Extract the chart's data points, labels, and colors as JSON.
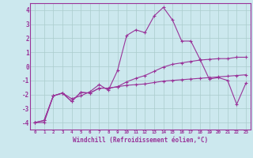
{
  "background_color": "#cce8ee",
  "grid_color": "#aacccc",
  "line_color": "#993399",
  "xlim": [
    -0.5,
    23.5
  ],
  "ylim": [
    -4.5,
    4.5
  ],
  "xtick_labels": [
    "0",
    "1",
    "2",
    "3",
    "4",
    "5",
    "6",
    "7",
    "8",
    "9",
    "10",
    "11",
    "12",
    "13",
    "14",
    "15",
    "16",
    "17",
    "18",
    "19",
    "20",
    "21",
    "22",
    "23"
  ],
  "ytick_labels": [
    "-4",
    "-3",
    "-2",
    "-1",
    "0",
    "1",
    "2",
    "3",
    "4"
  ],
  "ytick_values": [
    -4,
    -3,
    -2,
    -1,
    0,
    1,
    2,
    3,
    4
  ],
  "xlabel": "Windchill (Refroidissement éolien,°C)",
  "series1_x": [
    0,
    1,
    2,
    3,
    4,
    5,
    6,
    7,
    8,
    9,
    10,
    11,
    12,
    13,
    14,
    15,
    16,
    17,
    18,
    19,
    20,
    21,
    22,
    23
  ],
  "series1_y": [
    -4.0,
    -4.0,
    -2.1,
    -1.9,
    -2.3,
    -2.1,
    -1.8,
    -1.3,
    -1.7,
    -0.3,
    2.2,
    2.6,
    2.4,
    3.6,
    4.2,
    3.3,
    1.8,
    1.8,
    0.5,
    -0.9,
    -0.8,
    -1.0,
    -2.7,
    -1.2
  ],
  "series2_x": [
    0,
    1,
    2,
    3,
    4,
    5,
    6,
    7,
    8,
    9,
    10,
    11,
    12,
    13,
    14,
    15,
    16,
    17,
    18,
    19,
    20,
    21,
    22,
    23
  ],
  "series2_y": [
    -4.0,
    -3.85,
    -2.1,
    -1.9,
    -2.5,
    -1.85,
    -1.9,
    -1.55,
    -1.55,
    -1.45,
    -1.35,
    -1.3,
    -1.25,
    -1.15,
    -1.05,
    -1.0,
    -0.95,
    -0.9,
    -0.85,
    -0.8,
    -0.75,
    -0.7,
    -0.65,
    -0.6
  ],
  "series3_x": [
    0,
    1,
    2,
    3,
    4,
    5,
    6,
    7,
    8,
    9,
    10,
    11,
    12,
    13,
    14,
    15,
    16,
    17,
    18,
    19,
    20,
    21,
    22,
    23
  ],
  "series3_y": [
    -4.0,
    -3.85,
    -2.1,
    -1.9,
    -2.5,
    -1.85,
    -1.9,
    -1.55,
    -1.55,
    -1.45,
    -1.1,
    -0.85,
    -0.65,
    -0.35,
    -0.05,
    0.15,
    0.25,
    0.35,
    0.45,
    0.5,
    0.55,
    0.55,
    0.65,
    0.65
  ]
}
